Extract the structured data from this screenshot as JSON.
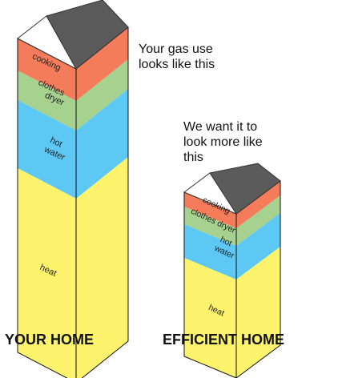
{
  "annotations": {
    "current": [
      "Your gas use",
      "looks like this"
    ],
    "efficient": [
      "We want it to",
      "look more like",
      "this"
    ]
  },
  "houses": [
    {
      "label": "YOUR HOME",
      "segments": [
        {
          "lines": [
            "cooking"
          ]
        },
        {
          "lines": [
            "clothes",
            "dryer"
          ]
        },
        {
          "lines": [
            "hot",
            "water"
          ]
        },
        {
          "lines": [
            "heat"
          ]
        }
      ]
    },
    {
      "label": "EFFICIENT HOME",
      "segments": [
        {
          "lines": [
            "cooking"
          ]
        },
        {
          "lines": [
            "clothes dryer"
          ]
        },
        {
          "lines": [
            "hot",
            "water"
          ]
        },
        {
          "lines": [
            "heat"
          ]
        }
      ]
    }
  ]
}
